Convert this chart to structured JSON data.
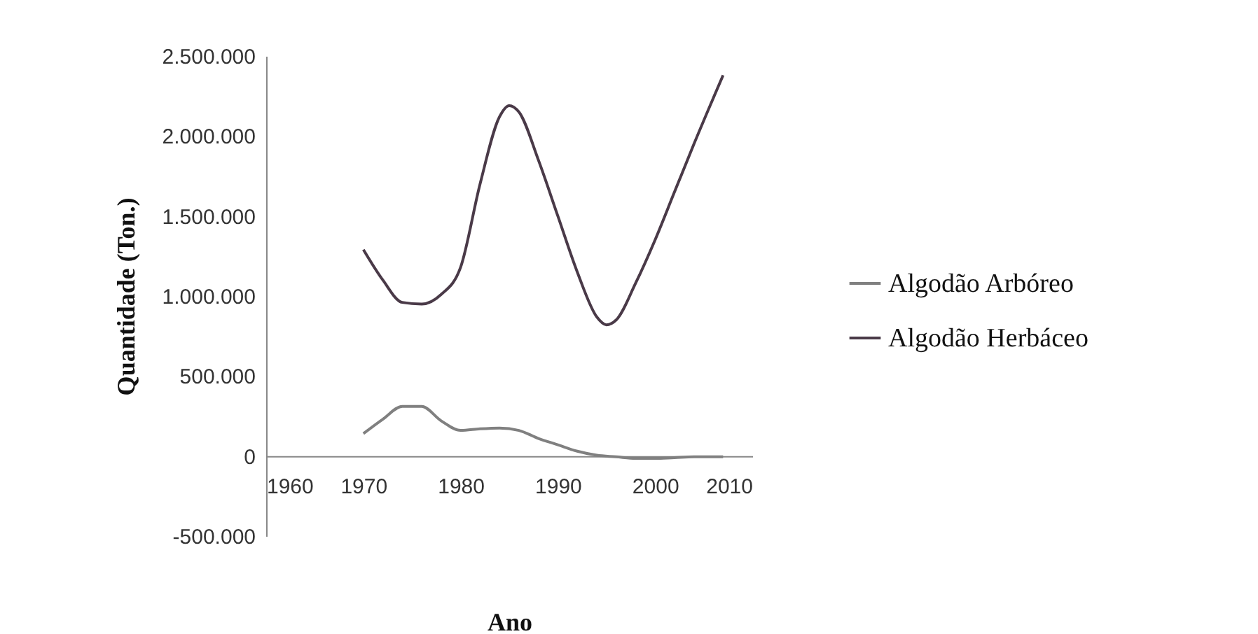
{
  "chart_data": {
    "type": "line",
    "xlabel": "Ano",
    "ylabel": "Quantidade (Ton.)",
    "xlim": [
      1960,
      2010
    ],
    "xticks": [
      1960,
      1970,
      1980,
      1990,
      2000,
      2010
    ],
    "ylim": [
      -500000,
      2500000
    ],
    "yticks": [
      {
        "value": -500000,
        "label": "-500.000"
      },
      {
        "value": 0,
        "label": "0"
      },
      {
        "value": 500000,
        "label": "500.000"
      },
      {
        "value": 1000000,
        "label": "1.000.000"
      },
      {
        "value": 1500000,
        "label": "1.500.000"
      },
      {
        "value": 2000000,
        "label": "2.000.000"
      },
      {
        "value": 2500000,
        "label": "2.500.000"
      }
    ],
    "grid": false,
    "legend": "right",
    "marker": "none",
    "line_style": "solid",
    "series": [
      {
        "name": "Algodão Arbóreo",
        "color": "#808080",
        "x": [
          1970,
          1972,
          1974,
          1976,
          1978,
          1980,
          1982,
          1984,
          1986,
          1988,
          1990,
          1992,
          1994,
          1996,
          1998,
          2000,
          2002,
          2004,
          2007
        ],
        "values": [
          140000,
          230000,
          310000,
          310000,
          220000,
          160000,
          170000,
          175000,
          160000,
          110000,
          70000,
          30000,
          5000,
          -5000,
          -15000,
          -15000,
          -10000,
          -5000,
          -5000
        ]
      },
      {
        "name": "Algodão Herbáceo",
        "color": "#4a3a48",
        "x": [
          1970,
          1972,
          1974,
          1976,
          1978,
          1980,
          1982,
          1984,
          1985,
          1986,
          1988,
          1990,
          1992,
          1994,
          1995,
          1996,
          1998,
          2000,
          2002,
          2004,
          2007
        ],
        "values": [
          1290000,
          1100000,
          960000,
          950000,
          1010000,
          1180000,
          1700000,
          2120000,
          2190000,
          2150000,
          1850000,
          1500000,
          1150000,
          870000,
          820000,
          850000,
          1080000,
          1350000,
          1650000,
          1950000,
          2380000
        ]
      }
    ]
  }
}
